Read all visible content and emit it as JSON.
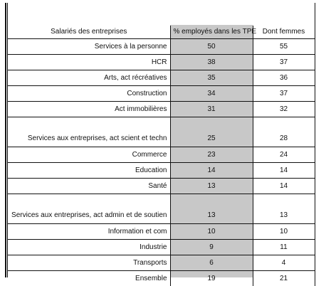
{
  "header": {
    "label": "Salariés des entreprises",
    "pct": "% employés dans les TPE",
    "women": "Dont femmes"
  },
  "rows": [
    {
      "label": "Services à la personne",
      "pct": "50",
      "women": "55"
    },
    {
      "label": "HCR",
      "pct": "38",
      "women": "37"
    },
    {
      "label": "Arts, act récréatives",
      "pct": "35",
      "women": "36"
    },
    {
      "label": "Construction",
      "pct": "34",
      "women": "37"
    },
    {
      "label": "Act immobilières",
      "pct": "31",
      "women": "32"
    },
    {
      "label": "Services aux entreprises, act scient et techn",
      "pct": "25",
      "women": "28"
    },
    {
      "label": "Commerce",
      "pct": "23",
      "women": "24"
    },
    {
      "label": "Education",
      "pct": "14",
      "women": "14"
    },
    {
      "label": "Santé",
      "pct": "13",
      "women": "14"
    },
    {
      "label": "Services aux entreprises, act admin et de soutien",
      "pct": "13",
      "women": "13"
    },
    {
      "label": "Information et com",
      "pct": "10",
      "women": "10"
    },
    {
      "label": "Industrie",
      "pct": "9",
      "women": "11"
    },
    {
      "label": "Transports",
      "pct": "6",
      "women": "4"
    },
    {
      "label": "Ensemble",
      "pct": "19",
      "women": "21"
    }
  ]
}
